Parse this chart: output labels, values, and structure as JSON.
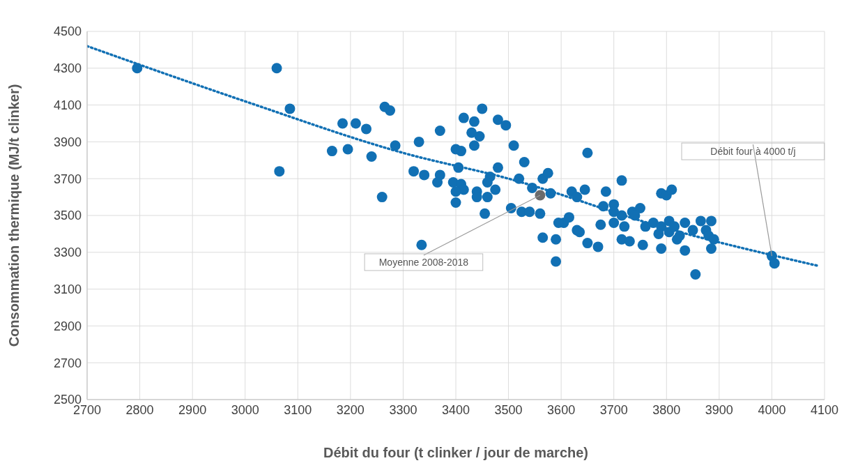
{
  "chart_data": {
    "type": "scatter",
    "xlabel": "Débit du four (t clinker / jour de marche)",
    "ylabel": "Consommation thermique (MJ/t clinker)",
    "xlim": [
      2700,
      4100
    ],
    "xticks": [
      2700,
      2800,
      2900,
      3000,
      3100,
      3200,
      3300,
      3400,
      3500,
      3600,
      3700,
      3800,
      3900,
      4000,
      4100
    ],
    "ylim": [
      2500,
      4500
    ],
    "yticks": [
      2500,
      2700,
      2900,
      3100,
      3300,
      3500,
      3700,
      3900,
      4100,
      4300,
      4500
    ],
    "grid": true,
    "marker": "circle",
    "series": [
      {
        "color": "#1170b4",
        "x": [
          2795,
          3060,
          3085,
          3065,
          3165,
          3185,
          3195,
          3210,
          3230,
          3240,
          3260,
          3265,
          3275,
          3285,
          3330,
          3370,
          3320,
          3340,
          3370,
          3365,
          3335,
          3395,
          3400,
          3410,
          3405,
          3415,
          3435,
          3450,
          3430,
          3445,
          3435,
          3480,
          3495,
          3510,
          3480,
          3530,
          3410,
          3415,
          3400,
          3400,
          3440,
          3440,
          3460,
          3465,
          3460,
          3475,
          3455,
          3520,
          3545,
          3565,
          3565,
          3505,
          3525,
          3540,
          3560,
          3575,
          3580,
          3650,
          3715,
          3645,
          3685,
          3620,
          3630,
          3680,
          3700,
          3700,
          3605,
          3615,
          3595,
          3630,
          3635,
          3675,
          3700,
          3715,
          3735,
          3750,
          3740,
          3720,
          3760,
          3775,
          3790,
          3800,
          3810,
          3805,
          3790,
          3805,
          3815,
          3785,
          3835,
          3850,
          3865,
          3885,
          3875,
          3880,
          3890,
          3885,
          3825,
          3820,
          3835,
          3790,
          3755,
          3715,
          3730,
          3670,
          3650,
          3590,
          3590,
          3855,
          4000,
          4005
        ],
        "values": [
          4300,
          4300,
          4080,
          3740,
          3850,
          4000,
          3860,
          4000,
          3970,
          3820,
          3600,
          4090,
          4070,
          3880,
          3900,
          3960,
          3740,
          3720,
          3720,
          3680,
          3340,
          3680,
          3860,
          3850,
          3760,
          4030,
          4010,
          4080,
          3950,
          3930,
          3880,
          4020,
          3990,
          3880,
          3760,
          3790,
          3670,
          3640,
          3630,
          3570,
          3630,
          3600,
          3600,
          3710,
          3680,
          3640,
          3510,
          3700,
          3650,
          3700,
          3380,
          3540,
          3520,
          3520,
          3510,
          3730,
          3620,
          3840,
          3690,
          3640,
          3630,
          3630,
          3600,
          3550,
          3560,
          3520,
          3460,
          3490,
          3460,
          3420,
          3410,
          3450,
          3460,
          3500,
          3520,
          3540,
          3500,
          3440,
          3440,
          3460,
          3620,
          3610,
          3640,
          3470,
          3440,
          3410,
          3440,
          3400,
          3460,
          3420,
          3470,
          3470,
          3420,
          3390,
          3370,
          3320,
          3390,
          3370,
          3310,
          3320,
          3340,
          3370,
          3360,
          3330,
          3350,
          3370,
          3250,
          3180,
          3280,
          3240
        ]
      },
      {
        "color": "#6b6b6b",
        "x": [
          3560
        ],
        "values": [
          3610
        ]
      },
      {
        "type": "line",
        "color": "#1170b4",
        "line_style": "dotted",
        "marker": "none",
        "x": [
          2700,
          3000,
          3300,
          3500,
          3800,
          4090
        ],
        "values": [
          4420,
          4120,
          3840,
          3700,
          3430,
          3225
        ]
      }
    ],
    "annotations": [
      {
        "text": "Moyenne 2008-2018",
        "x": 3560,
        "y": 3610
      },
      {
        "text": "Débit four à 4000 t/j",
        "x": 4000,
        "y": 3280
      }
    ]
  }
}
